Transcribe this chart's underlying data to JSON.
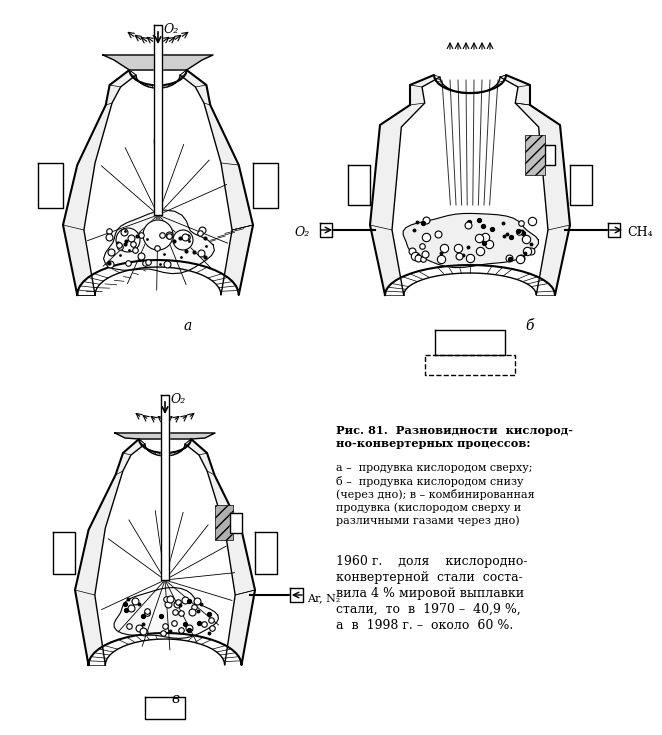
{
  "bg_color": "#ffffff",
  "fig_width": 6.32,
  "fig_height": 7.15,
  "caption_title": "Рис. 81.  Разновидности  кислород-\nно-конвертерных процессов:",
  "caption_body_a": "а –  продувка кислородом сверху;",
  "caption_body_b": "б –  продувка кислородом снизу",
  "caption_body_b2": "(через дно); в – комбинированная",
  "caption_body_v": "продувка (кислородом сверху и",
  "caption_body_v2": "различными газами через дно)",
  "stats_line1": "1960 г.    доля    кислородно-",
  "stats_line2": "конвертерной  стали  соста-",
  "stats_line3": "вила 4 % мировой выплавки",
  "stats_line4": "стали,  то  в  1970 –  40,9 %,",
  "stats_line5": "а  в  1998 г. –  около  60 %.",
  "label_a": "а",
  "label_b": "б",
  "label_v": "в",
  "label_O2": "O₂",
  "label_CH4": "CH₄",
  "label_ArN2": "Ar, N₂"
}
